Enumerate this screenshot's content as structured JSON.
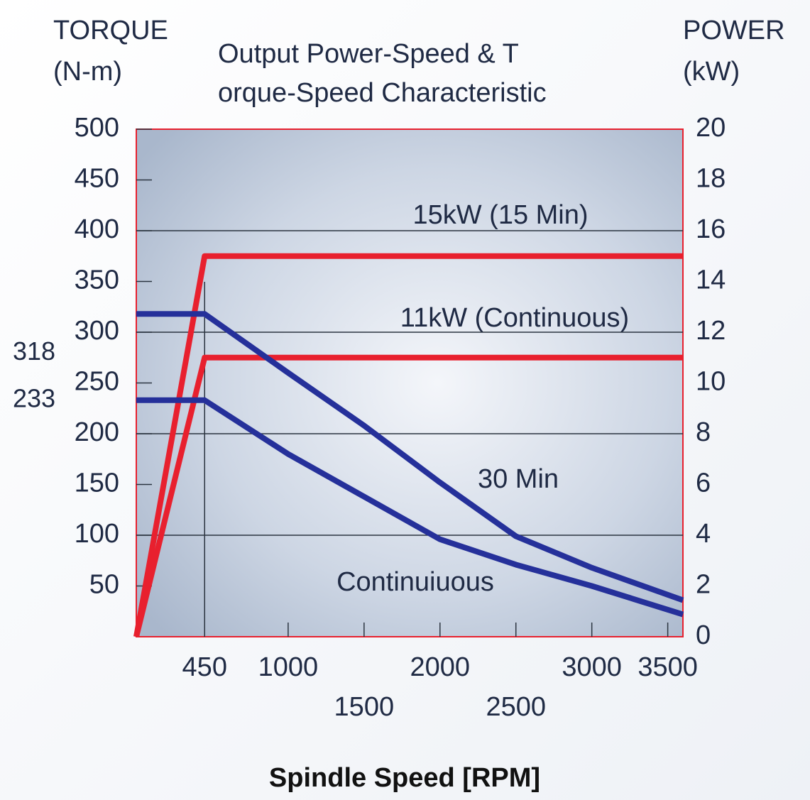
{
  "chart_data": {
    "type": "line",
    "title": [
      "Output Power-Speed & T",
      "orque-Speed Characteristic"
    ],
    "y_label": [
      "TORQUE",
      "(N-m)"
    ],
    "y2_label": [
      "POWER",
      "(kW)"
    ],
    "x_label": "Spindle Speed [RPM]",
    "xlim": [
      0,
      3600
    ],
    "xticks": [
      450,
      1000,
      1500,
      2000,
      2500,
      3000,
      3500
    ],
    "ylim": [
      0,
      500
    ],
    "yticks": [
      50,
      100,
      150,
      200,
      250,
      300,
      350,
      400,
      450,
      500
    ],
    "y2lim": [
      0,
      20
    ],
    "y2ticks": [
      0,
      2,
      4,
      6,
      8,
      10,
      12,
      14,
      16,
      18,
      20
    ],
    "grid_y": [
      100,
      200,
      300,
      400
    ],
    "grid_x": [
      450
    ],
    "series": [
      {
        "color": "#e8202e",
        "axis": "y2",
        "x": [
          0,
          450,
          3600
        ],
        "values": [
          0,
          15,
          15
        ]
      },
      {
        "color": "#e8202e",
        "axis": "y2",
        "x": [
          0,
          450,
          3600
        ],
        "values": [
          0,
          11,
          11
        ]
      },
      {
        "color": "#25309a",
        "x": [
          0,
          450,
          1000,
          1500,
          2000,
          2500,
          3000,
          3600
        ],
        "values": [
          318,
          318,
          260,
          208,
          152,
          99,
          68,
          36
        ]
      },
      {
        "color": "#25309a",
        "x": [
          0,
          450,
          1000,
          1500,
          2000,
          2500,
          3000,
          3600
        ],
        "values": [
          233,
          233,
          180,
          138,
          96,
          71,
          50,
          22
        ]
      }
    ],
    "annotations": [
      "15kW (15 Min)",
      "11kW (Continuous)",
      "30 Min",
      "Continuiuous"
    ],
    "marked_values": [
      318,
      233
    ]
  }
}
